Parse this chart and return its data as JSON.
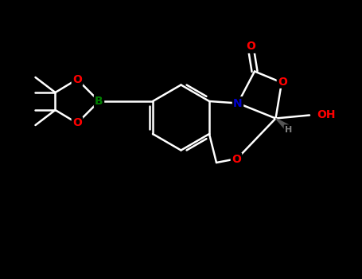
{
  "background_color": "#000000",
  "bond_color": "#ffffff",
  "atom_colors": {
    "O": "#ff0000",
    "N": "#0000cd",
    "B": "#008000",
    "H": "#808080"
  },
  "figsize": [
    4.55,
    3.5
  ],
  "dpi": 100,
  "lw": 1.8,
  "fs": 10
}
